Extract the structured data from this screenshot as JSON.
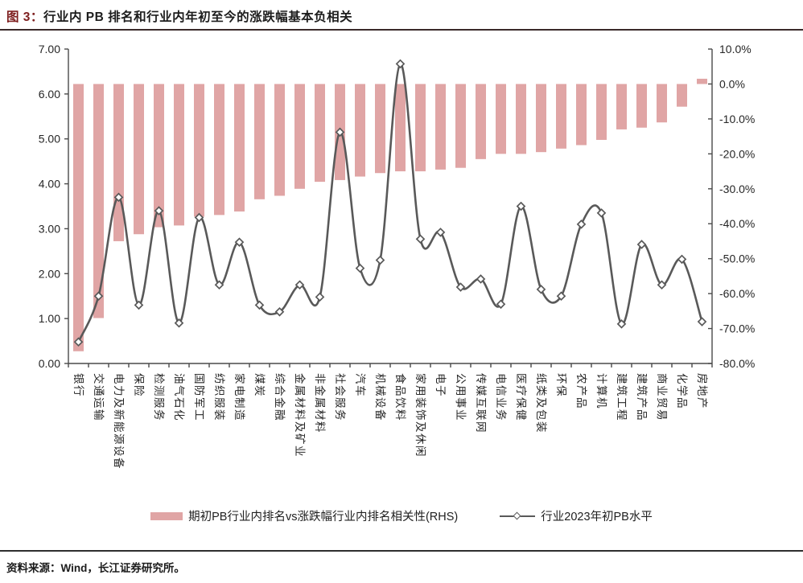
{
  "header": {
    "title_prefix": "图 3：",
    "title_text": "行业内 PB 排名和行业内年初至今的涨跌幅基本负相关"
  },
  "footer": {
    "source_label": "资料来源：Wind，长江证券研究所。"
  },
  "chart_data": {
    "type": "combo_bar_line",
    "title": "行业内PB排名和行业内年初至今的涨跌幅基本负相关",
    "categories": [
      "银行",
      "交通运输",
      "电力及新能源设备",
      "保险",
      "检测服务",
      "油气石化",
      "国防军工",
      "纺织服装",
      "家电制造",
      "煤炭",
      "综合金融",
      "金属材料及矿业",
      "非金属材料",
      "社会服务",
      "汽车",
      "机械设备",
      "食品饮料",
      "家用装饰及休闲",
      "电子",
      "公用事业",
      "传媒互联网",
      "电信业务",
      "医疗保健",
      "纸类及包装",
      "环保",
      "农产品",
      "计算机",
      "建筑工程",
      "建筑产品",
      "商业贸易",
      "化学品",
      "房地产"
    ],
    "series": [
      {
        "name": "期初PB行业内排名vs涨跌幅行业内排名相关性(RHS)",
        "type": "bar",
        "axis": "right",
        "unit": "%",
        "values": [
          -76.5,
          -67,
          -45,
          -43,
          -41,
          -40.5,
          -38,
          -37.5,
          -36.5,
          -33,
          -32,
          -30,
          -28,
          -27.5,
          -26.5,
          -25.5,
          -25,
          -25,
          -24.5,
          -24,
          -21.5,
          -20,
          -20,
          -19.5,
          -18.5,
          -17.5,
          -16,
          -13,
          -12.5,
          -11,
          -6.5,
          1.5
        ]
      },
      {
        "name": "行业2023年初PB水平",
        "type": "line",
        "axis": "left",
        "values": [
          0.48,
          1.5,
          3.7,
          1.3,
          3.4,
          0.9,
          3.25,
          1.75,
          2.7,
          1.3,
          1.15,
          1.75,
          1.48,
          5.15,
          2.12,
          2.3,
          6.67,
          2.77,
          2.92,
          1.7,
          1.88,
          1.32,
          3.5,
          1.65,
          1.5,
          3.1,
          3.35,
          0.88,
          2.65,
          1.75,
          2.32,
          0.93
        ]
      }
    ],
    "left_axis": {
      "range": [
        0,
        7
      ],
      "ticks": [
        "0.00",
        "1.00",
        "2.00",
        "3.00",
        "4.00",
        "5.00",
        "6.00",
        "7.00"
      ]
    },
    "right_axis": {
      "range": [
        -80,
        10
      ],
      "ticks": [
        "-80.0%",
        "-70.0%",
        "-60.0%",
        "-50.0%",
        "-40.0%",
        "-30.0%",
        "-20.0%",
        "-10.0%",
        "0.0%",
        "10.0%"
      ]
    },
    "legend": [
      "期初PB行业内排名vs涨跌幅行业内排名相关性(RHS)",
      "行业2023年初PB水平"
    ],
    "legend_position": "bottom",
    "grid": false,
    "colors": {
      "bar": "#E0A5A5",
      "line": "#595959",
      "axis": "#4a4a4a",
      "tick_label": "#262626"
    }
  }
}
